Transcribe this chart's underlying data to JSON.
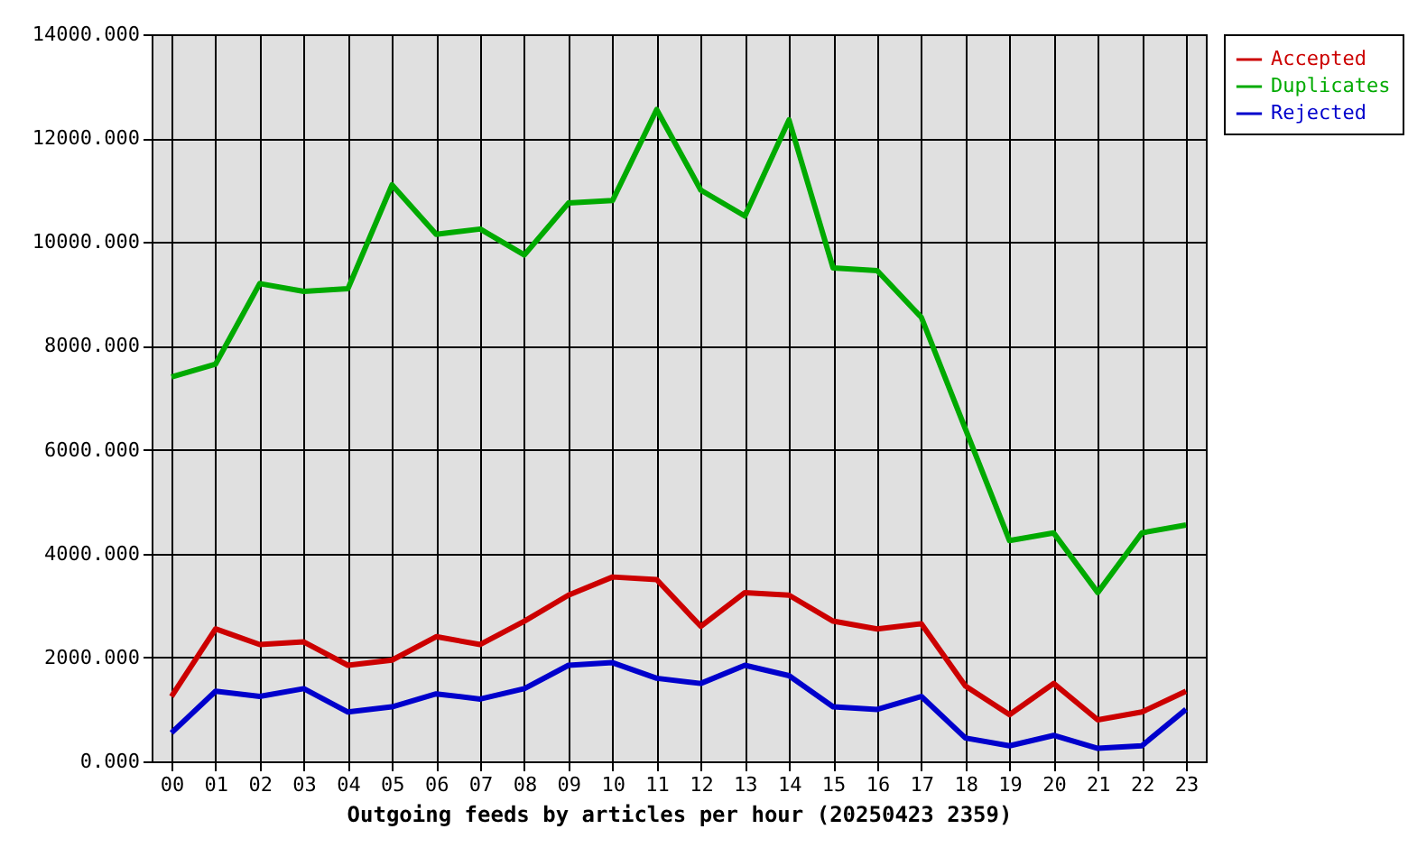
{
  "chart_data": {
    "type": "line",
    "xlabel": "Outgoing feeds by articles per hour (20250423 2359)",
    "categories": [
      "00",
      "01",
      "02",
      "03",
      "04",
      "05",
      "06",
      "07",
      "08",
      "09",
      "10",
      "11",
      "12",
      "13",
      "14",
      "15",
      "16",
      "17",
      "18",
      "19",
      "20",
      "21",
      "22",
      "23"
    ],
    "series": [
      {
        "name": "Accepted",
        "color": "#cc0000",
        "values": [
          1250,
          2550,
          2250,
          2300,
          1850,
          1950,
          2400,
          2250,
          2700,
          3200,
          3550,
          3500,
          2600,
          3250,
          3200,
          2700,
          2550,
          2650,
          1450,
          900,
          1500,
          800,
          950,
          1350
        ]
      },
      {
        "name": "Duplicates",
        "color": "#00aa00",
        "values": [
          7400,
          7650,
          9200,
          9050,
          9100,
          11100,
          10150,
          10250,
          9750,
          10750,
          10800,
          12550,
          11000,
          10500,
          12350,
          9500,
          9450,
          8550,
          6400,
          4250,
          4400,
          3250,
          4400,
          4550
        ]
      },
      {
        "name": "Rejected",
        "color": "#0000cc",
        "values": [
          550,
          1350,
          1250,
          1400,
          950,
          1050,
          1300,
          1200,
          1400,
          1850,
          1900,
          1600,
          1500,
          1850,
          1650,
          1050,
          1000,
          1250,
          450,
          300,
          500,
          250,
          300,
          1000
        ]
      }
    ],
    "ylim": [
      0,
      14000
    ],
    "yticks": [
      {
        "value": 0,
        "label": "0.000"
      },
      {
        "value": 2000,
        "label": "2000.000"
      },
      {
        "value": 4000,
        "label": "4000.000"
      },
      {
        "value": 6000,
        "label": "6000.000"
      },
      {
        "value": 8000,
        "label": "8000.000"
      },
      {
        "value": 10000,
        "label": "10000.000"
      },
      {
        "value": 12000,
        "label": "12000.000"
      },
      {
        "value": 14000,
        "label": "14000.000"
      }
    ],
    "grid": true,
    "legend": "top right",
    "line_style": "solid"
  }
}
